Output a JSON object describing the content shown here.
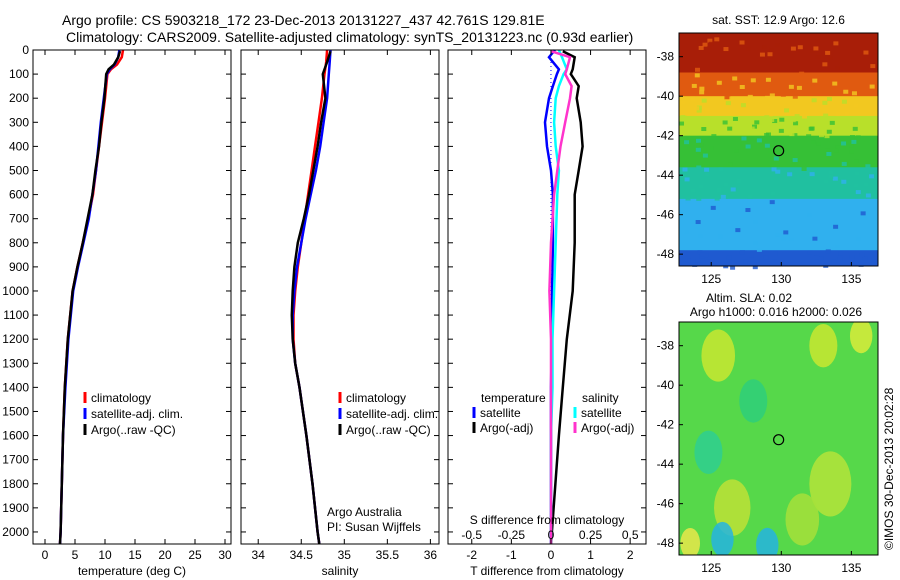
{
  "header": {
    "title1": "Argo profile: CS 5903218_172 23-Dec-2013 20131227_437  42.761S 129.81E",
    "title2": "Climatology: CARS2009. Satellite-adjusted climatology: synTS_20131223.nc (0.93d earlier)"
  },
  "stamp": "©IMOS 30-Dec-2013 20:02:28",
  "colors": {
    "climatology": "#ff0000",
    "satellite": "#0000ff",
    "argo": "#000000",
    "sat_cyan": "#00ffff",
    "argo_magenta": "#ff33cc"
  },
  "chart_data": [
    {
      "type": "line",
      "panel": "temperature",
      "xlabel": "temperature (deg C)",
      "ylabel": "",
      "xlim": [
        -2,
        31
      ],
      "ylim": [
        2050,
        0
      ],
      "grid": false,
      "xticks": [
        "0",
        "5",
        "10",
        "15",
        "20",
        "25",
        "30"
      ],
      "yticks": [
        "0",
        "100",
        "200",
        "300",
        "400",
        "500",
        "600",
        "700",
        "800",
        "900",
        "1000",
        "1100",
        "1200",
        "1300",
        "1400",
        "1500",
        "1600",
        "1700",
        "1800",
        "1900",
        "2000"
      ],
      "legend": [
        "climatology",
        "satellite-adj. clim.",
        "Argo(..raw -QC)"
      ],
      "legend_position": "lower-right",
      "series": [
        {
          "name": "climatology",
          "color": "#ff0000",
          "depth": [
            0,
            30,
            60,
            80,
            100,
            200,
            300,
            400,
            500,
            600,
            700,
            800,
            900,
            1000,
            1200,
            1400,
            1600,
            1800,
            2000,
            2050
          ],
          "values": [
            13.0,
            12.8,
            12.0,
            11.0,
            10.4,
            10.0,
            9.5,
            9.0,
            8.5,
            8.0,
            7.2,
            6.3,
            5.4,
            4.6,
            3.8,
            3.3,
            3.0,
            2.8,
            2.6,
            2.5
          ]
        },
        {
          "name": "satellite-adj. clim.",
          "color": "#0000ff",
          "depth": [
            0,
            30,
            60,
            80,
            100,
            200,
            300,
            400,
            500,
            600,
            700,
            800,
            900,
            1000,
            1200,
            1400,
            1600,
            1800,
            2000,
            2050
          ],
          "values": [
            12.4,
            12.2,
            11.6,
            10.8,
            10.3,
            9.8,
            9.3,
            8.9,
            8.5,
            7.9,
            7.3,
            6.4,
            5.5,
            4.7,
            3.9,
            3.4,
            3.0,
            2.8,
            2.6,
            2.5
          ]
        },
        {
          "name": "Argo(..raw -QC)",
          "color": "#000000",
          "depth": [
            5,
            30,
            60,
            80,
            100,
            200,
            300,
            400,
            500,
            600,
            700,
            800,
            900,
            1000,
            1200,
            1400,
            1600,
            1800,
            2000,
            2050
          ],
          "values": [
            12.5,
            12.2,
            11.5,
            10.6,
            10.2,
            9.9,
            9.4,
            9.0,
            8.4,
            7.9,
            7.1,
            6.3,
            5.4,
            4.6,
            3.8,
            3.3,
            3.0,
            2.8,
            2.6,
            2.5
          ]
        }
      ]
    },
    {
      "type": "line",
      "panel": "salinity",
      "xlabel": "salinity",
      "ylabel": "",
      "xlim": [
        33.8,
        36.1
      ],
      "ylim": [
        2050,
        0
      ],
      "grid": false,
      "xticks": [
        "34",
        "34.5",
        "35",
        "35.5",
        "36"
      ],
      "legend": [
        "climatology",
        "satellite-adj. clim.",
        "Argo(..raw -QC)"
      ],
      "legend_position": "lower-right",
      "annotations": [
        "Argo Australia",
        "PI: Susan Wijffels"
      ],
      "series": [
        {
          "name": "climatology",
          "color": "#ff0000",
          "depth": [
            0,
            50,
            100,
            200,
            300,
            400,
            500,
            600,
            700,
            800,
            900,
            1000,
            1100,
            1200,
            1300,
            1400,
            1600,
            1800,
            2000,
            2050
          ],
          "values": [
            34.8,
            34.79,
            34.77,
            34.74,
            34.7,
            34.66,
            34.62,
            34.58,
            34.54,
            34.5,
            34.46,
            34.43,
            34.41,
            34.41,
            34.43,
            34.48,
            34.56,
            34.63,
            34.69,
            34.71
          ]
        },
        {
          "name": "satellite-adj. clim.",
          "color": "#0000ff",
          "depth": [
            0,
            50,
            100,
            200,
            300,
            400,
            500,
            600,
            700,
            800,
            900,
            1000,
            1100,
            1200,
            1300,
            1400,
            1600,
            1800,
            2000,
            2050
          ],
          "values": [
            34.84,
            34.83,
            34.82,
            34.8,
            34.76,
            34.72,
            34.67,
            34.61,
            34.55,
            34.5,
            34.45,
            34.42,
            34.4,
            34.4,
            34.43,
            34.48,
            34.56,
            34.63,
            34.69,
            34.71
          ]
        },
        {
          "name": "Argo(..raw -QC)",
          "color": "#000000",
          "depth": [
            5,
            50,
            100,
            200,
            300,
            400,
            500,
            600,
            700,
            800,
            900,
            1000,
            1100,
            1200,
            1300,
            1400,
            1600,
            1800,
            2000,
            2050
          ],
          "values": [
            34.84,
            34.8,
            34.75,
            34.78,
            34.73,
            34.69,
            34.64,
            34.59,
            34.53,
            34.46,
            34.42,
            34.4,
            34.39,
            34.4,
            34.43,
            34.48,
            34.56,
            34.63,
            34.69,
            34.71
          ]
        }
      ]
    },
    {
      "type": "line",
      "panel": "difference",
      "xlabel": "T difference from climatology",
      "xlabel2": "S difference from climatology",
      "xlim_T": [
        -2.6,
        2.4
      ],
      "xlim_S": [
        -0.65,
        0.6
      ],
      "ylim": [
        2050,
        0
      ],
      "grid": false,
      "xticks_T": [
        "-2",
        "-1",
        "0",
        "1",
        "2"
      ],
      "xticks_S": [
        "-0.5",
        "-0.25",
        "0",
        "0.25",
        "0.5"
      ],
      "legend_groups": [
        "temperature",
        "salinity"
      ],
      "legend": [
        "satellite",
        "Argo(-adj)",
        "satellite",
        "Argo(-adj)"
      ],
      "legend_position": "lower-center",
      "series": [
        {
          "name": "temperature satellite",
          "group": "temperature",
          "color": "#0000ff",
          "depth": [
            0,
            30,
            80,
            100,
            150,
            200,
            300,
            400,
            500,
            600,
            800,
            1000,
            1200,
            1400,
            2050
          ],
          "values": [
            0.1,
            -0.05,
            0.2,
            0.15,
            0.05,
            -0.05,
            -0.15,
            -0.1,
            0.0,
            0.05,
            0.05,
            0.03,
            0.02,
            0.0,
            0.0
          ]
        },
        {
          "name": "temperature Argo(-adj)",
          "group": "temperature",
          "color": "#000000",
          "depth": [
            5,
            30,
            80,
            100,
            150,
            200,
            300,
            400,
            500,
            600,
            800,
            1000,
            1200,
            1400,
            1600,
            2050
          ],
          "values": [
            0.3,
            0.6,
            0.55,
            0.5,
            0.7,
            0.65,
            0.75,
            0.8,
            0.7,
            0.6,
            0.6,
            0.55,
            0.4,
            0.3,
            0.2,
            0.0
          ]
        },
        {
          "name": "salinity satellite",
          "group": "salinity",
          "color": "#00ffff",
          "depth": [
            0,
            30,
            80,
            100,
            150,
            200,
            300,
            400,
            500,
            600,
            800,
            1000,
            1200,
            1400,
            1600,
            1800,
            2050
          ],
          "values": [
            0.05,
            0.07,
            0.1,
            0.08,
            0.05,
            0.03,
            0.02,
            0.03,
            0.05,
            0.04,
            0.03,
            0.02,
            0.01,
            0.01,
            0.0,
            0.0,
            0.0
          ]
        },
        {
          "name": "salinity Argo(-adj)",
          "group": "salinity",
          "color": "#ff33cc",
          "depth": [
            5,
            30,
            80,
            100,
            150,
            200,
            300,
            400,
            500,
            600,
            800,
            1000,
            1200,
            1400,
            1600,
            2050
          ],
          "values": [
            0.0,
            0.12,
            0.1,
            0.09,
            0.13,
            0.12,
            0.09,
            0.06,
            0.04,
            0.02,
            0.0,
            -0.01,
            0.0,
            0.0,
            0.0,
            0.0
          ]
        }
      ]
    },
    {
      "type": "heatmap",
      "panel": "sst-map",
      "title": "sat. SST: 12.9 Argo: 12.6",
      "xticks": [
        "125",
        "130",
        "135"
      ],
      "yticks": [
        "-38",
        "-40",
        "-42",
        "-44",
        "-46",
        "-48"
      ],
      "xlim": [
        122.7,
        136.9
      ],
      "ylim": [
        -48.6,
        -36.8
      ],
      "marker": {
        "lon": 129.81,
        "lat": -42.761
      },
      "color_bands": [
        {
          "lat_from": -36.8,
          "lat_to": -38.8,
          "color": "#a81e08"
        },
        {
          "lat_from": -38.8,
          "lat_to": -40.0,
          "color": "#e05a10"
        },
        {
          "lat_from": -40.0,
          "lat_to": -41.0,
          "color": "#f2c820"
        },
        {
          "lat_from": -41.0,
          "lat_to": -42.0,
          "color": "#b8e02a"
        },
        {
          "lat_from": -42.0,
          "lat_to": -43.6,
          "color": "#36c036"
        },
        {
          "lat_from": -43.6,
          "lat_to": -45.2,
          "color": "#20c0a0"
        },
        {
          "lat_from": -45.2,
          "lat_to": -47.8,
          "color": "#30b0ee"
        },
        {
          "lat_from": -47.8,
          "lat_to": -48.6,
          "color": "#1f5ad0"
        }
      ]
    },
    {
      "type": "heatmap",
      "panel": "sla-map",
      "title": "Altim. SLA: 0.02",
      "subtitle": "Argo h1000: 0.016 h2000: 0.026",
      "xticks": [
        "125",
        "130",
        "135"
      ],
      "yticks": [
        "-38",
        "-40",
        "-42",
        "-44",
        "-46",
        "-48"
      ],
      "xlim": [
        122.7,
        136.9
      ],
      "ylim": [
        -48.6,
        -36.8
      ],
      "marker": {
        "lon": 129.81,
        "lat": -42.761
      },
      "background_color": "#56d84a",
      "blobs": [
        {
          "lon": 125.5,
          "lat": -38.5,
          "r": 1.2,
          "color": "#c8e830"
        },
        {
          "lon": 133.0,
          "lat": -38.0,
          "r": 1.0,
          "color": "#c8e830"
        },
        {
          "lon": 135.7,
          "lat": -37.5,
          "r": 0.8,
          "color": "#d8ec3a"
        },
        {
          "lon": 128.0,
          "lat": -40.8,
          "r": 1.0,
          "color": "#2ecf7a"
        },
        {
          "lon": 124.8,
          "lat": -43.4,
          "r": 1.0,
          "color": "#2ecf90"
        },
        {
          "lon": 133.5,
          "lat": -45.0,
          "r": 1.5,
          "color": "#b4e43a"
        },
        {
          "lon": 126.5,
          "lat": -46.2,
          "r": 1.3,
          "color": "#bde236"
        },
        {
          "lon": 131.5,
          "lat": -46.8,
          "r": 1.2,
          "color": "#a6e03a"
        },
        {
          "lon": 125.8,
          "lat": -47.8,
          "r": 0.8,
          "color": "#25b4e0"
        },
        {
          "lon": 129.0,
          "lat": -48.1,
          "r": 0.8,
          "color": "#25b4e0"
        },
        {
          "lon": 123.5,
          "lat": -48.0,
          "r": 0.7,
          "color": "#e8e84a"
        }
      ]
    }
  ]
}
